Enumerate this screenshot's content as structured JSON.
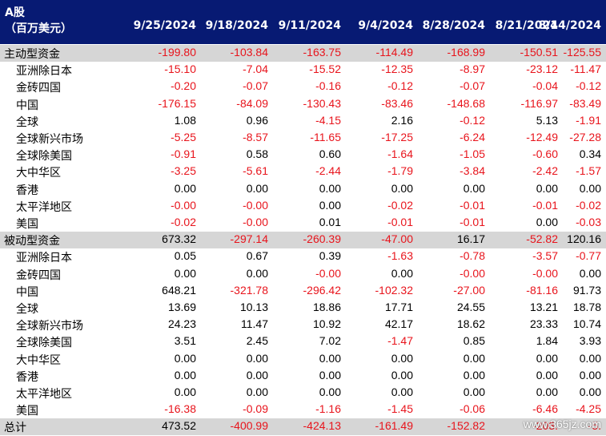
{
  "header": {
    "line1": "A股",
    "line2": "（百万美元）",
    "dates": [
      "9/25/2024",
      "9/18/2024",
      "9/11/2024",
      "9/4/2024",
      "8/28/2024",
      "8/21/2024",
      "8/14/2024"
    ]
  },
  "rows": [
    {
      "label": "主动型资金",
      "shaded": true,
      "indent": false,
      "values": [
        "-199.80",
        "-103.84",
        "-163.75",
        "-114.49",
        "-168.99",
        "-150.51",
        "-125.55"
      ]
    },
    {
      "label": "亚洲除日本",
      "shaded": false,
      "indent": true,
      "values": [
        "-15.10",
        "-7.04",
        "-15.52",
        "-12.35",
        "-8.97",
        "-23.12",
        "-11.47"
      ]
    },
    {
      "label": "金砖四国",
      "shaded": false,
      "indent": true,
      "values": [
        "-0.20",
        "-0.07",
        "-0.16",
        "-0.12",
        "-0.07",
        "-0.04",
        "-0.12"
      ]
    },
    {
      "label": "中国",
      "shaded": false,
      "indent": true,
      "values": [
        "-176.15",
        "-84.09",
        "-130.43",
        "-83.46",
        "-148.68",
        "-116.97",
        "-83.49"
      ]
    },
    {
      "label": "全球",
      "shaded": false,
      "indent": true,
      "values": [
        "1.08",
        "0.96",
        "-4.15",
        "2.16",
        "-0.12",
        "5.13",
        "-1.91"
      ]
    },
    {
      "label": "全球新兴市场",
      "shaded": false,
      "indent": true,
      "values": [
        "-5.25",
        "-8.57",
        "-11.65",
        "-17.25",
        "-6.24",
        "-12.49",
        "-27.28"
      ]
    },
    {
      "label": "全球除美国",
      "shaded": false,
      "indent": true,
      "values": [
        "-0.91",
        "0.58",
        "0.60",
        "-1.64",
        "-1.05",
        "-0.60",
        "0.34"
      ]
    },
    {
      "label": "大中华区",
      "shaded": false,
      "indent": true,
      "values": [
        "-3.25",
        "-5.61",
        "-2.44",
        "-1.79",
        "-3.84",
        "-2.42",
        "-1.57"
      ]
    },
    {
      "label": "香港",
      "shaded": false,
      "indent": true,
      "values": [
        "0.00",
        "0.00",
        "0.00",
        "0.00",
        "0.00",
        "0.00",
        "0.00"
      ]
    },
    {
      "label": "太平洋地区",
      "shaded": false,
      "indent": true,
      "values": [
        "-0.00",
        "-0.00",
        "0.00",
        "-0.02",
        "-0.01",
        "-0.01",
        "-0.02"
      ]
    },
    {
      "label": "美国",
      "shaded": false,
      "indent": true,
      "values": [
        "-0.02",
        "-0.00",
        "0.01",
        "-0.01",
        "-0.01",
        "0.00",
        "-0.03"
      ]
    },
    {
      "label": "被动型资金",
      "shaded": true,
      "indent": false,
      "values": [
        "673.32",
        "-297.14",
        "-260.39",
        "-47.00",
        "16.17",
        "-52.82",
        "120.16"
      ]
    },
    {
      "label": "亚洲除日本",
      "shaded": false,
      "indent": true,
      "values": [
        "0.05",
        "0.67",
        "0.39",
        "-1.63",
        "-0.78",
        "-3.57",
        "-0.77"
      ]
    },
    {
      "label": "金砖四国",
      "shaded": false,
      "indent": true,
      "values": [
        "0.00",
        "0.00",
        "-0.00",
        "0.00",
        "-0.00",
        "-0.00",
        "0.00"
      ]
    },
    {
      "label": "中国",
      "shaded": false,
      "indent": true,
      "values": [
        "648.21",
        "-321.78",
        "-296.42",
        "-102.32",
        "-27.00",
        "-81.16",
        "91.73"
      ]
    },
    {
      "label": "全球",
      "shaded": false,
      "indent": true,
      "values": [
        "13.69",
        "10.13",
        "18.86",
        "17.71",
        "24.55",
        "13.21",
        "18.78"
      ]
    },
    {
      "label": "全球新兴市场",
      "shaded": false,
      "indent": true,
      "values": [
        "24.23",
        "11.47",
        "10.92",
        "42.17",
        "18.62",
        "23.33",
        "10.74"
      ]
    },
    {
      "label": "全球除美国",
      "shaded": false,
      "indent": true,
      "values": [
        "3.51",
        "2.45",
        "7.02",
        "-1.47",
        "0.85",
        "1.84",
        "3.93"
      ]
    },
    {
      "label": "大中华区",
      "shaded": false,
      "indent": true,
      "values": [
        "0.00",
        "0.00",
        "0.00",
        "0.00",
        "0.00",
        "0.00",
        "0.00"
      ]
    },
    {
      "label": "香港",
      "shaded": false,
      "indent": true,
      "values": [
        "0.00",
        "0.00",
        "0.00",
        "0.00",
        "0.00",
        "0.00",
        "0.00"
      ]
    },
    {
      "label": "太平洋地区",
      "shaded": false,
      "indent": true,
      "values": [
        "0.00",
        "0.00",
        "0.00",
        "0.00",
        "0.00",
        "0.00",
        "0.00"
      ]
    },
    {
      "label": "美国",
      "shaded": false,
      "indent": true,
      "values": [
        "-16.38",
        "-0.09",
        "-1.16",
        "-1.45",
        "-0.06",
        "-6.46",
        "-4.25"
      ]
    },
    {
      "label": "总计",
      "shaded": true,
      "indent": false,
      "values": [
        "473.52",
        "-400.99",
        "-424.13",
        "-161.49",
        "-152.82",
        "-203.",
        "-5."
      ]
    }
  ],
  "watermark": "www.365jz.com",
  "colors": {
    "header_bg": "#071a73",
    "shade": "#d6d6d6",
    "negative": "#e8141c",
    "positive": "#000000"
  }
}
